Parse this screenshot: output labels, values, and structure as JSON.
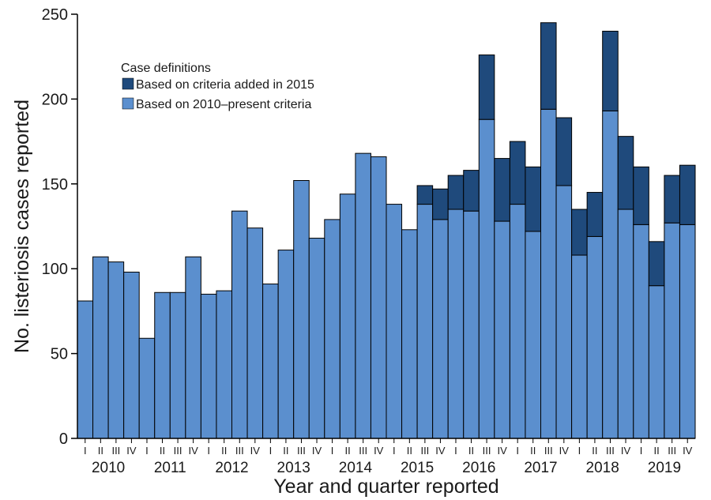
{
  "chart_data": {
    "type": "bar",
    "stacked": true,
    "ylabel": "No. listeriosis cases reported",
    "xlabel": "Year and quarter reported",
    "ylim": [
      0,
      250
    ],
    "yticks": [
      0,
      50,
      100,
      150,
      200,
      250
    ],
    "years": [
      "2010",
      "2011",
      "2012",
      "2013",
      "2014",
      "2015",
      "2016",
      "2017",
      "2018",
      "2019"
    ],
    "quarter_labels": [
      "I",
      "II",
      "III",
      "IV"
    ],
    "legend": {
      "title": "Case definitions",
      "position": "top-left",
      "entries": [
        {
          "label": "Based on criteria added in 2015",
          "color": "#1f4a7c"
        },
        {
          "label": "Based on 2010–present criteria",
          "color": "#5b8fce"
        }
      ]
    },
    "series": [
      {
        "name": "Based on 2010–present criteria",
        "color": "#5b8fce",
        "values": [
          81,
          107,
          104,
          98,
          59,
          86,
          86,
          107,
          85,
          87,
          134,
          124,
          91,
          111,
          152,
          118,
          129,
          144,
          168,
          166,
          138,
          123,
          138,
          129,
          135,
          134,
          188,
          128,
          138,
          122,
          194,
          149,
          108,
          119,
          193,
          135,
          126,
          90,
          127,
          126
        ]
      },
      {
        "name": "Based on criteria added in 2015",
        "color": "#1f4a7c",
        "values": [
          0,
          0,
          0,
          0,
          0,
          0,
          0,
          0,
          0,
          0,
          0,
          0,
          0,
          0,
          0,
          0,
          0,
          0,
          0,
          0,
          0,
          0,
          11,
          18,
          20,
          24,
          38,
          37,
          37,
          38,
          51,
          40,
          27,
          26,
          47,
          43,
          34,
          26,
          28,
          35
        ]
      }
    ],
    "grid": false
  }
}
